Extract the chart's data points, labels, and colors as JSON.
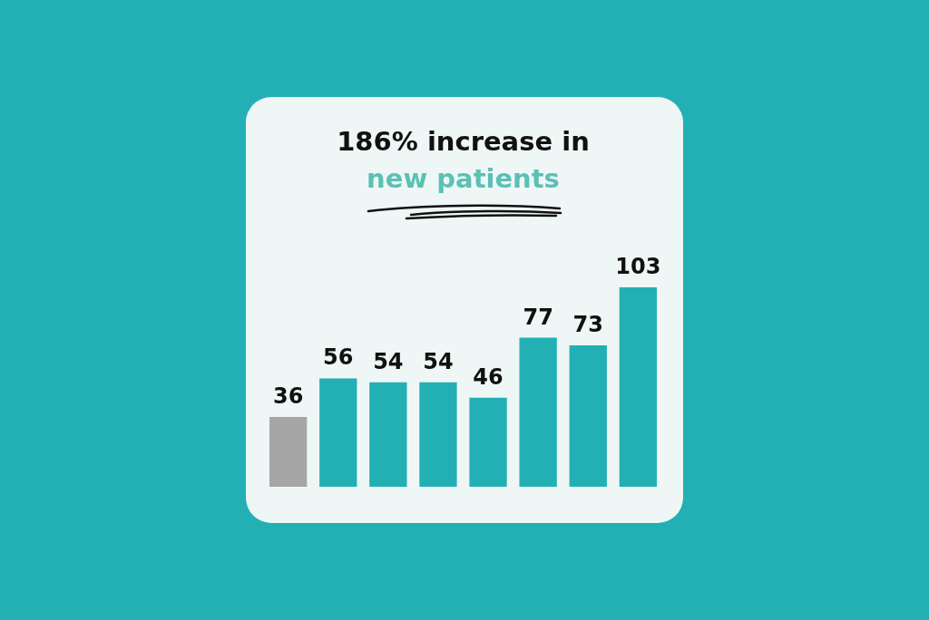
{
  "chart_data": {
    "type": "bar",
    "title": "186% increase in",
    "subtitle": "new patients",
    "categories": [
      null,
      null,
      null,
      null,
      null,
      null,
      null,
      null
    ],
    "values": [
      36,
      56,
      54,
      54,
      46,
      77,
      73,
      103
    ],
    "colors": [
      "#a6a6a6",
      "#23b0b4",
      "#23b0b4",
      "#23b0b4",
      "#23b0b4",
      "#23b0b4",
      "#23b0b4",
      "#23b0b4"
    ],
    "data_labels": true,
    "tick_labels": false
  }
}
